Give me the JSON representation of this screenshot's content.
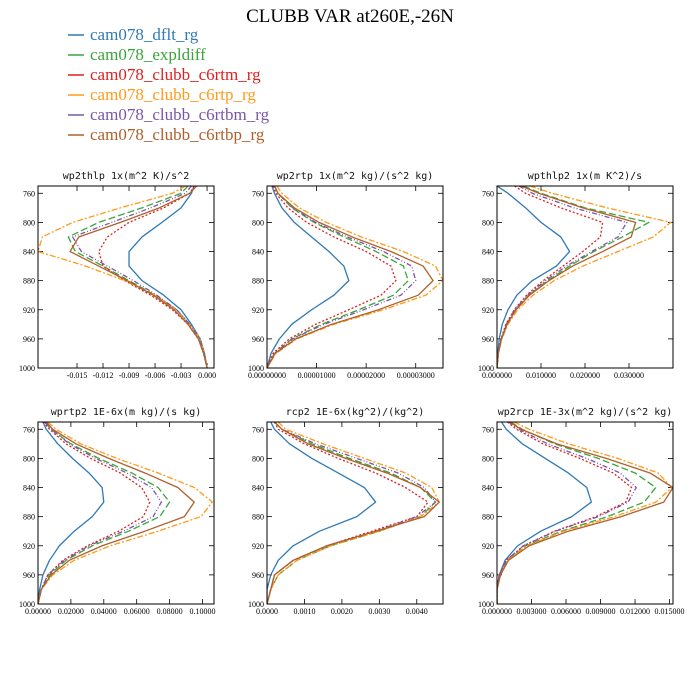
{
  "figure_title": "CLUBB VAR at260E,-26N",
  "legend": [
    {
      "name": "cam078_dflt_rg",
      "color": "#2f79b7",
      "dash": ""
    },
    {
      "name": "cam078_expldiff",
      "color": "#3aa63a",
      "dash": "7,3"
    },
    {
      "name": "cam078_clubb_c6rtm_rg",
      "color": "#e02020",
      "dash": "2,2"
    },
    {
      "name": "cam078_clubb_c6rtp_rg",
      "color": "#ff9a1a",
      "dash": "6,2,2,2"
    },
    {
      "name": "cam078_clubb_c6rtbm_rg",
      "color": "#7b55a8",
      "dash": "5,2,1,2,1,2"
    },
    {
      "name": "cam078_clubb_c6rtbp_rg",
      "color": "#b0602a",
      "dash": ""
    }
  ],
  "chart_data": [
    {
      "type": "line",
      "title": "wp2thlp  1x(m^2 K)/s^2",
      "y_ticks": [
        "760",
        "800",
        "840",
        "880",
        "920",
        "960",
        "1000"
      ],
      "ylim": [
        1000,
        750
      ],
      "xlim": [
        -0.0195,
        0.0008
      ],
      "x_ticks": [
        -0.015,
        -0.012,
        -0.009,
        -0.006,
        -0.003,
        0.0
      ],
      "x_tick_labels": [
        "-0.015",
        "-0.012",
        "-0.009",
        "-0.006",
        "-0.003",
        "0.000"
      ],
      "pressure": [
        750,
        760,
        780,
        800,
        820,
        840,
        860,
        880,
        900,
        920,
        940,
        960,
        980,
        1000
      ],
      "series": [
        {
          "name": "cam078_dflt_rg",
          "values": [
            -0.0015,
            -0.0018,
            -0.003,
            -0.0052,
            -0.0075,
            -0.009,
            -0.009,
            -0.0075,
            -0.005,
            -0.003,
            -0.0018,
            -0.0008,
            -0.0003,
            0.0
          ]
        },
        {
          "name": "cam078_expldiff",
          "values": [
            -0.0022,
            -0.003,
            -0.0075,
            -0.0125,
            -0.016,
            -0.0152,
            -0.012,
            -0.009,
            -0.006,
            -0.0035,
            -0.002,
            -0.0008,
            -0.0003,
            0.0
          ]
        },
        {
          "name": "cam078_clubb_c6rtm_rg",
          "values": [
            -0.0015,
            -0.002,
            -0.005,
            -0.009,
            -0.0115,
            -0.0125,
            -0.012,
            -0.0095,
            -0.0065,
            -0.004,
            -0.0022,
            -0.001,
            -0.0004,
            0.0
          ]
        },
        {
          "name": "cam078_clubb_c6rtp_rg",
          "values": [
            -0.0025,
            -0.004,
            -0.01,
            -0.0155,
            -0.019,
            -0.0195,
            -0.014,
            -0.0095,
            -0.006,
            -0.0035,
            -0.002,
            -0.0008,
            -0.0003,
            0.0
          ]
        },
        {
          "name": "cam078_clubb_c6rtbm_rg",
          "values": [
            -0.0018,
            -0.0025,
            -0.0065,
            -0.011,
            -0.0155,
            -0.0145,
            -0.0115,
            -0.0085,
            -0.0058,
            -0.0035,
            -0.002,
            -0.0008,
            -0.0003,
            0.0
          ]
        },
        {
          "name": "cam078_clubb_c6rtbp_rg",
          "values": [
            -0.0012,
            -0.002,
            -0.0055,
            -0.01,
            -0.0148,
            -0.0158,
            -0.0125,
            -0.0092,
            -0.0062,
            -0.0038,
            -0.0022,
            -0.001,
            -0.0004,
            0.0
          ]
        }
      ]
    },
    {
      "type": "line",
      "title": "wp2rtp  1x(m^2 kg)/(s^2 kg)",
      "y_ticks": [
        "760",
        "800",
        "840",
        "880",
        "920",
        "960",
        "1000"
      ],
      "ylim": [
        1000,
        750
      ],
      "xlim": [
        0.0,
        3.55e-05
      ],
      "x_ticks": [
        0.0,
        1e-05,
        2e-05,
        3e-05
      ],
      "x_tick_labels": [
        "0.00000000",
        "0.00001000",
        "0.00002000",
        "0.00003000"
      ],
      "pressure": [
        750,
        760,
        780,
        800,
        820,
        840,
        860,
        880,
        900,
        920,
        940,
        960,
        980,
        1000
      ],
      "series": [
        {
          "name": "cam078_dflt_rg",
          "values": [
            1e-06,
            1.5e-06,
            3e-06,
            5.5e-06,
            9e-06,
            1.25e-05,
            1.55e-05,
            1.65e-05,
            1.35e-05,
            9e-06,
            5e-06,
            2.5e-06,
            8e-07,
            0.0
          ]
        },
        {
          "name": "cam078_expldiff",
          "values": [
            1.5e-06,
            2.2e-06,
            5e-06,
            9.5e-06,
            1.55e-05,
            2.2e-05,
            2.75e-05,
            2.85e-05,
            2.55e-05,
            1.85e-05,
            1.1e-05,
            5e-06,
            1.5e-06,
            0.0
          ]
        },
        {
          "name": "cam078_clubb_c6rtm_rg",
          "values": [
            1.2e-06,
            1.8e-06,
            4.2e-06,
            8e-06,
            1.35e-05,
            2e-05,
            2.5e-05,
            2.6e-05,
            2.3e-05,
            1.65e-05,
            9.8e-06,
            4.5e-06,
            1.2e-06,
            0.0
          ]
        },
        {
          "name": "cam078_clubb_c6rtp_rg",
          "values": [
            2e-06,
            3e-06,
            6.5e-06,
            1.2e-05,
            1.9e-05,
            2.75e-05,
            3.4e-05,
            3.55e-05,
            3.2e-05,
            2.35e-05,
            1.35e-05,
            6e-06,
            1.8e-06,
            0.0
          ]
        },
        {
          "name": "cam078_clubb_c6rtbm_rg",
          "values": [
            1.5e-06,
            2.2e-06,
            5.2e-06,
            9.8e-06,
            1.62e-05,
            2.35e-05,
            2.92e-05,
            3e-05,
            2.7e-05,
            1.95e-05,
            1.15e-05,
            5.2e-06,
            1.5e-06,
            0.0
          ]
        },
        {
          "name": "cam078_clubb_c6rtbp_rg",
          "values": [
            1.5e-06,
            2.2e-06,
            5.5e-06,
            1.05e-05,
            1.72e-05,
            2.5e-05,
            3.15e-05,
            3.35e-05,
            3.05e-05,
            2.25e-05,
            1.3e-05,
            5.8e-06,
            1.6e-06,
            0.0
          ]
        }
      ]
    },
    {
      "type": "line",
      "title": "wpthlp2  1x(m K^2)/s",
      "y_ticks": [
        "760",
        "800",
        "840",
        "880",
        "920",
        "960",
        "1000"
      ],
      "ylim": [
        1000,
        750
      ],
      "xlim": [
        0.0,
        0.04
      ],
      "x_ticks": [
        0.0,
        0.01,
        0.02,
        0.03
      ],
      "x_tick_labels": [
        "0.000000",
        "0.010000",
        "0.020000",
        "0.030000"
      ],
      "pressure": [
        750,
        760,
        780,
        800,
        820,
        840,
        860,
        880,
        900,
        920,
        940,
        960,
        980,
        1000
      ],
      "series": [
        {
          "name": "cam078_dflt_rg",
          "values": [
            0.0,
            0.0025,
            0.0065,
            0.01,
            0.0145,
            0.0165,
            0.0135,
            0.008,
            0.0045,
            0.0025,
            0.0012,
            0.0005,
            0.0002,
            0.0
          ]
        },
        {
          "name": "cam078_expldiff",
          "values": [
            0.006,
            0.01,
            0.02,
            0.0345,
            0.0285,
            0.022,
            0.0165,
            0.0115,
            0.0072,
            0.0042,
            0.0022,
            0.001,
            0.0003,
            0.0
          ]
        },
        {
          "name": "cam078_clubb_c6rtm_rg",
          "values": [
            0.004,
            0.0065,
            0.0145,
            0.024,
            0.0235,
            0.0195,
            0.015,
            0.0105,
            0.0067,
            0.0039,
            0.002,
            0.0009,
            0.0003,
            0.0
          ]
        },
        {
          "name": "cam078_clubb_c6rtp_rg",
          "values": [
            0.0075,
            0.0125,
            0.025,
            0.0395,
            0.0355,
            0.0275,
            0.0195,
            0.013,
            0.0082,
            0.0047,
            0.0025,
            0.0011,
            0.0003,
            0.0
          ]
        },
        {
          "name": "cam078_clubb_c6rtbm_rg",
          "values": [
            0.005,
            0.008,
            0.0175,
            0.0295,
            0.0275,
            0.0215,
            0.0158,
            0.011,
            0.007,
            0.004,
            0.0021,
            0.001,
            0.0003,
            0.0
          ]
        },
        {
          "name": "cam078_clubb_c6rtbp_rg",
          "values": [
            0.0055,
            0.0095,
            0.0195,
            0.0315,
            0.0305,
            0.024,
            0.0172,
            0.0118,
            0.0074,
            0.0043,
            0.0023,
            0.001,
            0.0003,
            0.0
          ]
        }
      ]
    },
    {
      "type": "line",
      "title": "wprtp2  1E-6x(m kg)/(s kg)",
      "y_ticks": [
        "760",
        "800",
        "840",
        "880",
        "920",
        "960",
        "1000"
      ],
      "ylim": [
        1000,
        750
      ],
      "xlim": [
        0.0,
        0.107
      ],
      "x_ticks": [
        0.0,
        0.02,
        0.04,
        0.06,
        0.08,
        0.1
      ],
      "x_tick_labels": [
        "0.00000",
        "0.02000",
        "0.04000",
        "0.06000",
        "0.08000",
        "0.10000"
      ],
      "pressure": [
        750,
        760,
        780,
        800,
        820,
        840,
        860,
        880,
        900,
        920,
        940,
        960,
        980,
        1000
      ],
      "series": [
        {
          "name": "cam078_dflt_rg",
          "values": [
            0.003,
            0.005,
            0.012,
            0.021,
            0.031,
            0.039,
            0.04,
            0.033,
            0.022,
            0.013,
            0.007,
            0.003,
            0.001,
            0.0
          ]
        },
        {
          "name": "cam078_expldiff",
          "values": [
            0.004,
            0.008,
            0.02,
            0.037,
            0.057,
            0.073,
            0.08,
            0.074,
            0.055,
            0.033,
            0.017,
            0.007,
            0.002,
            0.0
          ]
        },
        {
          "name": "cam078_clubb_c6rtm_rg",
          "values": [
            0.003,
            0.007,
            0.017,
            0.032,
            0.05,
            0.063,
            0.068,
            0.064,
            0.049,
            0.03,
            0.015,
            0.006,
            0.002,
            0.0
          ]
        },
        {
          "name": "cam078_clubb_c6rtp_rg",
          "values": [
            0.006,
            0.011,
            0.026,
            0.048,
            0.073,
            0.095,
            0.106,
            0.099,
            0.073,
            0.044,
            0.022,
            0.009,
            0.002,
            0.0
          ]
        },
        {
          "name": "cam078_clubb_c6rtbm_rg",
          "values": [
            0.004,
            0.008,
            0.019,
            0.035,
            0.054,
            0.069,
            0.075,
            0.07,
            0.052,
            0.031,
            0.016,
            0.006,
            0.002,
            0.0
          ]
        },
        {
          "name": "cam078_clubb_c6rtbp_rg",
          "values": [
            0.005,
            0.009,
            0.023,
            0.043,
            0.065,
            0.085,
            0.095,
            0.089,
            0.065,
            0.039,
            0.019,
            0.008,
            0.002,
            0.0
          ]
        }
      ]
    },
    {
      "type": "line",
      "title": "rcp2  1E-6x(kg^2)/(kg^2)",
      "y_ticks": [
        "760",
        "800",
        "840",
        "880",
        "920",
        "960",
        "1000"
      ],
      "ylim": [
        1000,
        750
      ],
      "xlim": [
        0.0,
        0.0047
      ],
      "x_ticks": [
        0.0,
        0.001,
        0.002,
        0.003,
        0.004
      ],
      "x_tick_labels": [
        "0.0000",
        "0.0010",
        "0.0020",
        "0.0030",
        "0.0040"
      ],
      "pressure": [
        750,
        760,
        780,
        800,
        820,
        840,
        860,
        880,
        900,
        920,
        940,
        960,
        980,
        1000
      ],
      "series": [
        {
          "name": "cam078_dflt_rg",
          "values": [
            0.0001,
            0.0002,
            0.0006,
            0.0012,
            0.0019,
            0.0026,
            0.0029,
            0.0024,
            0.0014,
            0.0007,
            0.0003,
            0.0001,
            0.0,
            0.0
          ]
        },
        {
          "name": "cam078_expldiff",
          "values": [
            0.0002,
            0.0004,
            0.0012,
            0.0022,
            0.0033,
            0.0041,
            0.0045,
            0.0041,
            0.003,
            0.0017,
            0.0008,
            0.0003,
            0.0001,
            0.0
          ]
        },
        {
          "name": "cam078_clubb_c6rtm_rg",
          "values": [
            0.0002,
            0.0003,
            0.001,
            0.0019,
            0.0029,
            0.0037,
            0.0043,
            0.004,
            0.0028,
            0.0016,
            0.0007,
            0.0002,
            0.0001,
            0.0
          ]
        },
        {
          "name": "cam078_clubb_c6rtp_rg",
          "values": [
            0.0003,
            0.0005,
            0.0015,
            0.0026,
            0.0037,
            0.0044,
            0.0046,
            0.0041,
            0.003,
            0.0017,
            0.0008,
            0.0003,
            0.0001,
            0.0
          ]
        },
        {
          "name": "cam078_clubb_c6rtbm_rg",
          "values": [
            0.0002,
            0.0004,
            0.0013,
            0.0024,
            0.0035,
            0.0042,
            0.0045,
            0.004,
            0.0029,
            0.0016,
            0.0007,
            0.0002,
            0.0001,
            0.0
          ]
        },
        {
          "name": "cam078_clubb_c6rtbp_rg",
          "values": [
            0.0002,
            0.0004,
            0.0011,
            0.0021,
            0.0032,
            0.0041,
            0.0046,
            0.0042,
            0.0029,
            0.0016,
            0.0007,
            0.0002,
            0.0001,
            0.0
          ]
        }
      ]
    },
    {
      "type": "line",
      "title": "wp2rcp  1E-3x(m^2 kg)/(s^2 kg)",
      "y_ticks": [
        "760",
        "800",
        "840",
        "880",
        "920",
        "960",
        "1000"
      ],
      "ylim": [
        1000,
        750
      ],
      "xlim": [
        0.0,
        0.0153
      ],
      "x_ticks": [
        0.0,
        0.003,
        0.006,
        0.009,
        0.012,
        0.015
      ],
      "x_tick_labels": [
        "0.000000",
        "0.003000",
        "0.006000",
        "0.009000",
        "0.012000",
        "0.015000"
      ],
      "pressure": [
        750,
        760,
        780,
        800,
        820,
        840,
        860,
        880,
        900,
        920,
        940,
        960,
        980,
        1000
      ],
      "series": [
        {
          "name": "cam078_dflt_rg",
          "values": [
            0.0004,
            0.0008,
            0.0022,
            0.0042,
            0.0062,
            0.0078,
            0.0082,
            0.0065,
            0.0038,
            0.0018,
            0.0007,
            0.0002,
            0.0,
            0.0
          ]
        },
        {
          "name": "cam078_expldiff",
          "values": [
            0.0012,
            0.0022,
            0.005,
            0.0088,
            0.012,
            0.0138,
            0.0128,
            0.0096,
            0.0056,
            0.0025,
            0.0009,
            0.0003,
            0.0,
            0.0
          ]
        },
        {
          "name": "cam078_clubb_c6rtm_rg",
          "values": [
            0.0009,
            0.0017,
            0.004,
            0.0072,
            0.0101,
            0.0117,
            0.0112,
            0.0086,
            0.005,
            0.0023,
            0.0008,
            0.0002,
            0.0,
            0.0
          ]
        },
        {
          "name": "cam078_clubb_c6rtp_rg",
          "values": [
            0.0015,
            0.0028,
            0.0062,
            0.0105,
            0.014,
            0.0152,
            0.0138,
            0.0102,
            0.0058,
            0.0026,
            0.0009,
            0.0003,
            0.0,
            0.0
          ]
        },
        {
          "name": "cam078_clubb_c6rtbm_rg",
          "values": [
            0.001,
            0.0019,
            0.0044,
            0.0078,
            0.0107,
            0.0121,
            0.0114,
            0.0088,
            0.0051,
            0.0023,
            0.0008,
            0.0002,
            0.0,
            0.0
          ]
        },
        {
          "name": "cam078_clubb_c6rtbp_rg",
          "values": [
            0.0011,
            0.0021,
            0.0052,
            0.0095,
            0.0133,
            0.0153,
            0.0145,
            0.0108,
            0.0062,
            0.0028,
            0.001,
            0.0003,
            0.0,
            0.0
          ]
        }
      ]
    }
  ]
}
